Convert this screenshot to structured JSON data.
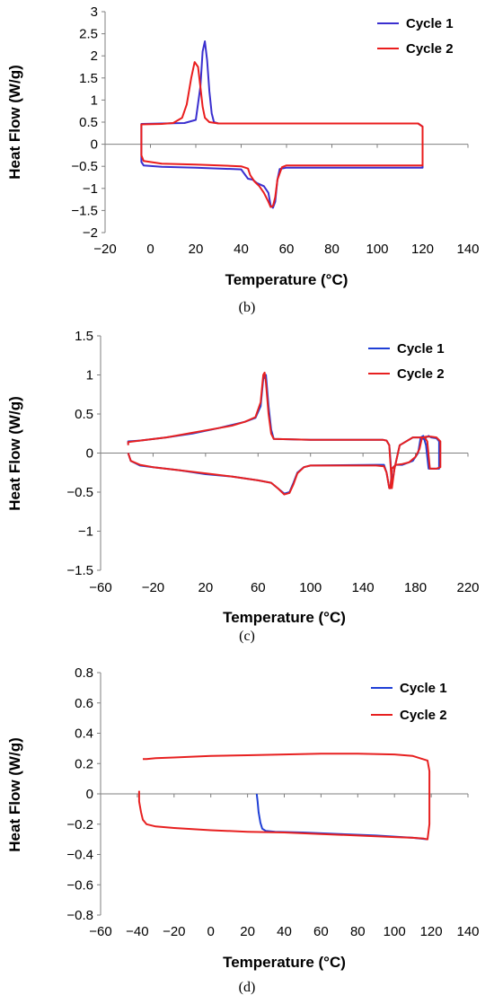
{
  "chart_data": [
    {
      "panel_label": "(b)",
      "type": "line",
      "xlabel": "Temperature (°C)",
      "ylabel": "Heat Flow (W/g)",
      "xlim": [
        -20,
        140
      ],
      "ylim": [
        -2,
        3
      ],
      "xticks": [
        -20,
        0,
        20,
        40,
        60,
        80,
        100,
        120,
        140
      ],
      "yticks": [
        -2,
        -1.5,
        -1,
        -0.5,
        0,
        0.5,
        1,
        1.5,
        2,
        2.5,
        3
      ],
      "xtick_labels": [
        "−20",
        "0",
        "20",
        "40",
        "60",
        "80",
        "100",
        "120",
        "140"
      ],
      "ytick_labels": [
        "−2",
        "−1.5",
        "−1",
        "−0.5",
        "0",
        "0.5",
        "1",
        "1.5",
        "2",
        "2.5",
        "3"
      ],
      "legend_position": "top-right",
      "grid": false,
      "series": [
        {
          "name": "Cycle 1",
          "color": "#3a2fcf",
          "x": [
            -4,
            -4,
            5,
            15,
            20,
            22,
            23,
            24,
            25,
            26,
            27,
            28,
            30,
            60,
            100,
            118,
            120,
            120,
            118,
            100,
            80,
            60,
            57,
            56,
            55,
            54,
            53,
            52,
            50,
            47,
            45,
            43,
            40,
            20,
            5,
            -3,
            -4,
            -4
          ],
          "y": [
            0.0,
            0.46,
            0.47,
            0.48,
            0.55,
            1.3,
            2.1,
            2.33,
            1.9,
            1.2,
            0.7,
            0.5,
            0.47,
            0.47,
            0.47,
            0.47,
            0.4,
            -0.53,
            -0.53,
            -0.53,
            -0.53,
            -0.53,
            -0.56,
            -0.8,
            -1.3,
            -1.44,
            -1.38,
            -1.1,
            -0.95,
            -0.88,
            -0.8,
            -0.78,
            -0.57,
            -0.53,
            -0.51,
            -0.48,
            -0.4,
            0.0
          ]
        },
        {
          "name": "Cycle 2",
          "color": "#ea1d1d",
          "x": [
            -4,
            -4,
            5,
            10,
            14,
            16,
            18,
            19.5,
            21,
            22,
            23,
            24,
            26,
            30,
            60,
            100,
            118,
            120,
            120,
            118,
            100,
            80,
            60,
            58,
            56,
            55,
            54,
            53,
            52,
            50,
            48,
            46,
            44,
            43,
            40,
            20,
            5,
            -3,
            -4,
            -4
          ],
          "y": [
            0.0,
            0.45,
            0.46,
            0.48,
            0.6,
            0.9,
            1.5,
            1.86,
            1.75,
            1.3,
            0.85,
            0.6,
            0.5,
            0.47,
            0.47,
            0.47,
            0.47,
            0.4,
            -0.48,
            -0.48,
            -0.48,
            -0.48,
            -0.48,
            -0.52,
            -0.8,
            -1.2,
            -1.4,
            -1.42,
            -1.3,
            -1.1,
            -0.95,
            -0.85,
            -0.7,
            -0.55,
            -0.5,
            -0.46,
            -0.44,
            -0.38,
            -0.25,
            0.1
          ]
        }
      ]
    },
    {
      "panel_label": "(c)",
      "type": "line",
      "xlabel": "Temperature (°C)",
      "ylabel": "Heat Flow (W/g)",
      "xlim": [
        -60,
        220
      ],
      "ylim": [
        -1.5,
        1.5
      ],
      "xticks": [
        -60,
        -20,
        20,
        60,
        100,
        140,
        180,
        220
      ],
      "yticks": [
        -1.5,
        -1,
        -0.5,
        0,
        0.5,
        1,
        1.5
      ],
      "xtick_labels": [
        "−60",
        "−20",
        "20",
        "60",
        "100",
        "140",
        "180",
        "220"
      ],
      "ytick_labels": [
        "−1.5",
        "−1",
        "−0.5",
        "0",
        "0.5",
        "1",
        "1.5"
      ],
      "legend_position": "top-right",
      "grid": false,
      "series": [
        {
          "name": "Cycle 1",
          "color": "#1f3fd6",
          "x": [
            -39,
            -39,
            -30,
            -10,
            10,
            30,
            40,
            50,
            58,
            62,
            64,
            66,
            68,
            70,
            72,
            100,
            140,
            155,
            158,
            160,
            161,
            162,
            164,
            168,
            178,
            182,
            184,
            186,
            188,
            190,
            192,
            196,
            198,
            198,
            196,
            190,
            188,
            186,
            184,
            182,
            178,
            170,
            165,
            162,
            161,
            160,
            158,
            156,
            150,
            100,
            95,
            90,
            87,
            84,
            80,
            75,
            70,
            60,
            40,
            20,
            0,
            -20,
            -30,
            -37,
            -39
          ],
          "y": [
            0.12,
            0.15,
            0.16,
            0.2,
            0.25,
            0.32,
            0.36,
            0.4,
            0.45,
            0.6,
            0.95,
            1.0,
            0.6,
            0.3,
            0.18,
            0.17,
            0.17,
            0.17,
            0.16,
            0.1,
            -0.1,
            -0.4,
            -0.2,
            0.1,
            0.2,
            0.2,
            0.2,
            0.18,
            0.2,
            0.22,
            0.2,
            0.19,
            0.15,
            -0.2,
            -0.2,
            -0.2,
            0.1,
            0.22,
            0.2,
            0.0,
            -0.1,
            -0.15,
            -0.15,
            -0.2,
            -0.45,
            -0.45,
            -0.25,
            -0.15,
            -0.15,
            -0.16,
            -0.18,
            -0.25,
            -0.38,
            -0.5,
            -0.52,
            -0.45,
            -0.38,
            -0.35,
            -0.3,
            -0.27,
            -0.22,
            -0.18,
            -0.16,
            -0.1,
            0.0
          ]
        },
        {
          "name": "Cycle 2",
          "color": "#e72020",
          "x": [
            -39,
            -39,
            -30,
            -10,
            10,
            30,
            40,
            50,
            58,
            62,
            64,
            65,
            66,
            68,
            70,
            72,
            100,
            140,
            155,
            158,
            160,
            161,
            162,
            164,
            168,
            178,
            182,
            184,
            186,
            188,
            190,
            192,
            196,
            199,
            199,
            196,
            191,
            189,
            187,
            185,
            183,
            180,
            175,
            170,
            165,
            162,
            161,
            160,
            158,
            156,
            150,
            100,
            95,
            90,
            87,
            84,
            80,
            75,
            70,
            60,
            40,
            20,
            0,
            -20,
            -30,
            -37,
            -39
          ],
          "y": [
            0.1,
            0.14,
            0.16,
            0.2,
            0.26,
            0.32,
            0.35,
            0.4,
            0.46,
            0.65,
            1.0,
            1.03,
            0.9,
            0.5,
            0.25,
            0.18,
            0.17,
            0.17,
            0.17,
            0.16,
            0.1,
            -0.15,
            -0.45,
            -0.2,
            0.1,
            0.2,
            0.2,
            0.2,
            0.2,
            0.21,
            0.21,
            0.21,
            0.2,
            0.15,
            -0.18,
            -0.2,
            -0.2,
            0.15,
            0.2,
            0.2,
            0.05,
            -0.05,
            -0.12,
            -0.14,
            -0.15,
            -0.2,
            -0.45,
            -0.45,
            -0.25,
            -0.17,
            -0.16,
            -0.16,
            -0.18,
            -0.26,
            -0.4,
            -0.51,
            -0.53,
            -0.45,
            -0.38,
            -0.35,
            -0.3,
            -0.26,
            -0.22,
            -0.18,
            -0.15,
            -0.1,
            0.0
          ]
        }
      ]
    },
    {
      "panel_label": "(d)",
      "type": "line",
      "xlabel": "Temperature (°C)",
      "ylabel": "Heat Flow (W/g)",
      "xlim": [
        -60,
        140
      ],
      "ylim": [
        -0.8,
        0.8
      ],
      "xticks": [
        -60,
        -40,
        -20,
        0,
        20,
        40,
        60,
        80,
        100,
        120,
        140
      ],
      "yticks": [
        -0.8,
        -0.6,
        -0.4,
        -0.2,
        0,
        0.2,
        0.4,
        0.6,
        0.8
      ],
      "xtick_labels": [
        "−60",
        "−40",
        "−20",
        "0",
        "20",
        "40",
        "60",
        "80",
        "100",
        "120",
        "140"
      ],
      "ytick_labels": [
        "−0.8",
        "−0.6",
        "−0.4",
        "−0.2",
        "0",
        "0.2",
        "0.4",
        "0.6",
        "0.8"
      ],
      "legend_position": "top-right",
      "grid": false,
      "series": [
        {
          "name": "Cycle 1",
          "color": "#1f3fd6",
          "x": [
            25,
            25.5,
            26,
            27,
            28,
            30,
            35,
            50,
            70,
            90,
            110,
            118
          ],
          "y": [
            0.0,
            -0.05,
            -0.12,
            -0.19,
            -0.23,
            -0.245,
            -0.25,
            -0.255,
            -0.265,
            -0.275,
            -0.29,
            -0.3
          ]
        },
        {
          "name": "Cycle 2",
          "color": "#e72020",
          "x": [
            -39,
            -39,
            -38,
            -37,
            -35,
            -30,
            -20,
            0,
            20,
            40,
            60,
            80,
            100,
            110,
            116,
            118,
            119,
            119,
            118,
            110,
            100,
            80,
            60,
            40,
            20,
            0,
            -20,
            -30,
            -35,
            -37
          ],
          "y": [
            0.02,
            -0.05,
            -0.12,
            -0.17,
            -0.2,
            -0.215,
            -0.225,
            -0.24,
            -0.25,
            -0.255,
            -0.265,
            -0.275,
            -0.285,
            -0.29,
            -0.295,
            -0.3,
            -0.2,
            0.15,
            0.22,
            0.25,
            0.26,
            0.265,
            0.265,
            0.26,
            0.255,
            0.25,
            0.24,
            0.235,
            0.23,
            0.23
          ]
        }
      ]
    }
  ]
}
